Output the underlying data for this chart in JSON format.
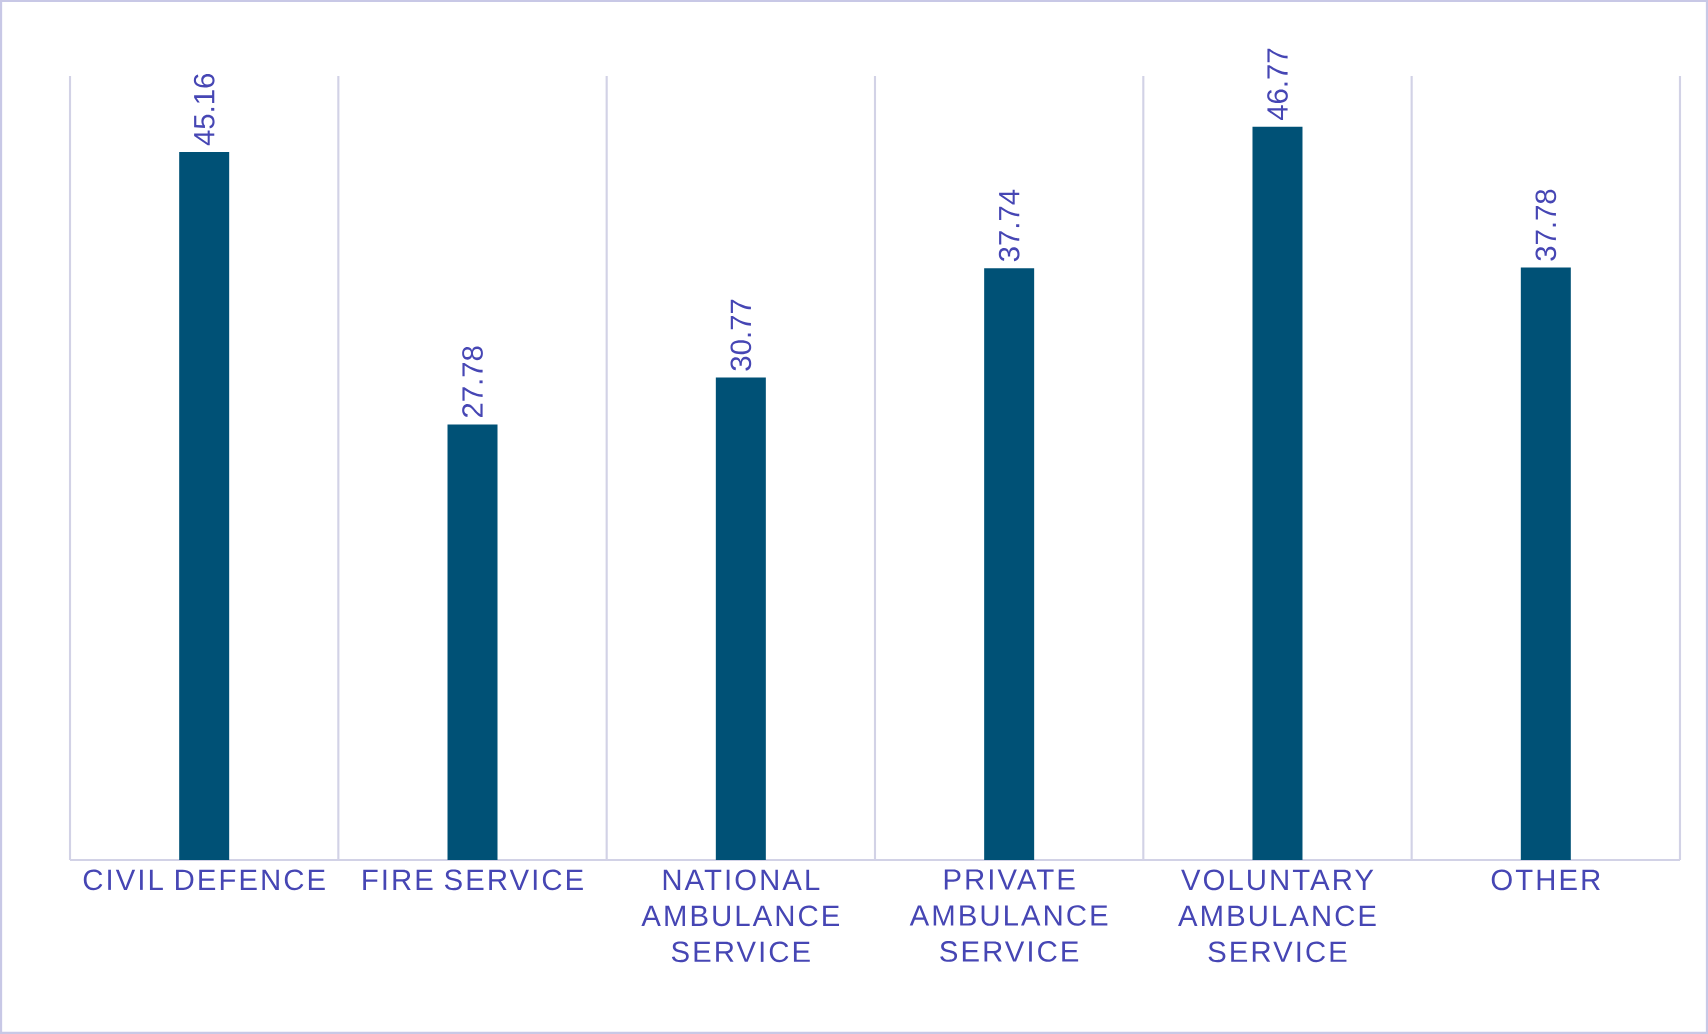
{
  "chart_data": {
    "type": "bar",
    "categories": [
      "CIVIL DEFENCE",
      "FIRE SERVICE",
      "NATIONAL AMBULANCE SERVICE",
      "PRIVATE AMBULANCE SERVICE",
      "VOLUNTARY AMBULANCE SERVICE",
      "OTHER"
    ],
    "values": [
      45.16,
      27.78,
      30.77,
      37.74,
      46.77,
      37.78
    ],
    "color": "#005176",
    "ylim": [
      0,
      50
    ],
    "data_labels": true,
    "grid": "x",
    "tick_labels": "x"
  }
}
